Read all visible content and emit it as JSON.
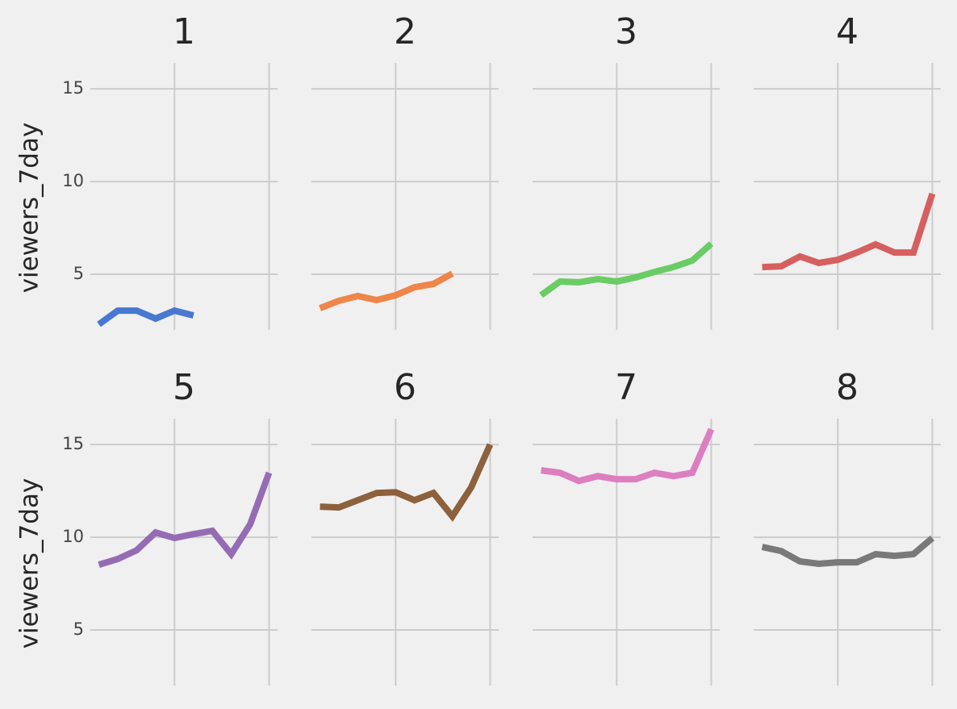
{
  "chart_data": [
    {
      "type": "line",
      "title": "1",
      "ylabel": "viewers_7day",
      "color": "#4878d0",
      "x": [
        1,
        2,
        3,
        4,
        5,
        6
      ],
      "values": [
        2.3,
        3.04,
        3.04,
        2.61,
        3.04,
        2.78
      ],
      "xlim": [
        0.55,
        10.45
      ],
      "xticks": [
        5,
        10
      ],
      "ylim": [
        2,
        16.4
      ],
      "yticks": [
        5,
        10,
        15
      ],
      "grid": true
    },
    {
      "type": "line",
      "title": "2",
      "color": "#ee854a",
      "x": [
        1,
        2,
        3,
        4,
        5,
        6,
        7,
        8
      ],
      "values": [
        3.17,
        3.57,
        3.83,
        3.61,
        3.87,
        4.3,
        4.48,
        5.04
      ],
      "xlim": [
        0.55,
        10.45
      ],
      "xticks": [
        5,
        10
      ],
      "ylim": [
        2,
        16.4
      ],
      "yticks": [
        5,
        10,
        15
      ],
      "grid": true
    },
    {
      "type": "line",
      "title": "3",
      "color": "#6acc64",
      "x": [
        1,
        2,
        3,
        4,
        5,
        6,
        7,
        8,
        9,
        10
      ],
      "values": [
        3.87,
        4.61,
        4.57,
        4.74,
        4.61,
        4.83,
        5.13,
        5.39,
        5.74,
        6.65
      ],
      "xlim": [
        0.55,
        10.45
      ],
      "xticks": [
        5,
        10
      ],
      "ylim": [
        2,
        16.4
      ],
      "yticks": [
        5,
        10,
        15
      ],
      "grid": true
    },
    {
      "type": "line",
      "title": "4",
      "color": "#d65f5f",
      "x": [
        1,
        2,
        3,
        4,
        5,
        6,
        7,
        8,
        9,
        10
      ],
      "values": [
        5.39,
        5.43,
        5.96,
        5.61,
        5.78,
        6.17,
        6.61,
        6.17,
        6.17,
        9.35
      ],
      "xlim": [
        0.55,
        10.45
      ],
      "xticks": [
        5,
        10
      ],
      "ylim": [
        2,
        16.4
      ],
      "yticks": [
        5,
        10,
        15
      ],
      "grid": true
    },
    {
      "type": "line",
      "title": "5",
      "ylabel": "viewers_7day",
      "color": "#956cb4",
      "x": [
        1,
        2,
        3,
        4,
        5,
        6,
        7,
        8,
        9,
        10
      ],
      "values": [
        8.52,
        8.83,
        9.3,
        10.26,
        9.96,
        10.17,
        10.35,
        9.09,
        10.7,
        13.48
      ],
      "xlim": [
        0.55,
        10.45
      ],
      "xticks": [
        5,
        10
      ],
      "ylim": [
        2,
        16.4
      ],
      "yticks": [
        5,
        10,
        15
      ],
      "grid": true
    },
    {
      "type": "line",
      "title": "6",
      "color": "#8c613c",
      "x": [
        1,
        2,
        3,
        4,
        5,
        6,
        7,
        8,
        9,
        10
      ],
      "values": [
        11.65,
        11.61,
        12.0,
        12.39,
        12.43,
        12.0,
        12.39,
        11.13,
        12.7,
        15.0
      ],
      "xlim": [
        0.55,
        10.45
      ],
      "xticks": [
        5,
        10
      ],
      "ylim": [
        2,
        16.4
      ],
      "yticks": [
        5,
        10,
        15
      ],
      "grid": true
    },
    {
      "type": "line",
      "title": "7",
      "color": "#dc7ec0",
      "x": [
        1,
        2,
        3,
        4,
        5,
        6,
        7,
        8,
        9,
        10
      ],
      "values": [
        13.61,
        13.48,
        13.04,
        13.3,
        13.13,
        13.13,
        13.48,
        13.3,
        13.48,
        15.83
      ],
      "xlim": [
        0.55,
        10.45
      ],
      "xticks": [
        5,
        10
      ],
      "ylim": [
        2,
        16.4
      ],
      "yticks": [
        5,
        10,
        15
      ],
      "grid": true
    },
    {
      "type": "line",
      "title": "8",
      "color": "#797979",
      "x": [
        1,
        2,
        3,
        4,
        5,
        6,
        7,
        8,
        9,
        10
      ],
      "values": [
        9.48,
        9.26,
        8.7,
        8.57,
        8.65,
        8.65,
        9.09,
        9.0,
        9.09,
        9.96
      ],
      "xlim": [
        0.55,
        10.45
      ],
      "xticks": [
        5,
        10
      ],
      "ylim": [
        2,
        16.4
      ],
      "yticks": [
        5,
        10,
        15
      ],
      "grid": true
    }
  ]
}
